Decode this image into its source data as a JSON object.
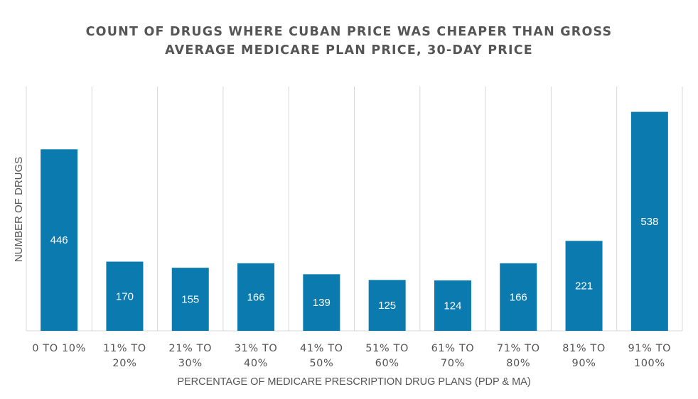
{
  "chart_data": {
    "type": "bar",
    "title_lines": [
      "COUNT OF DRUGS WHERE CUBAN PRICE WAS CHEAPER THAN GROSS",
      "AVERAGE MEDICARE PLAN PRICE, 30-DAY PRICE"
    ],
    "ylabel": "NUMBER OF DRUGS",
    "xlabel": "PERCENTAGE OF MEDICARE PRESCRIPTION DRUG PLANS (PDP & MA)",
    "categories": [
      [
        "0 TO 10%"
      ],
      [
        "11% TO",
        "20%"
      ],
      [
        "21% TO",
        "30%"
      ],
      [
        "31% TO",
        "40%"
      ],
      [
        "41% TO",
        "50%"
      ],
      [
        "51% TO",
        "60%"
      ],
      [
        "61% TO",
        "70%"
      ],
      [
        "71% TO",
        "80%"
      ],
      [
        "81% TO",
        "90%"
      ],
      [
        "91% TO",
        "100%"
      ]
    ],
    "values": [
      446,
      170,
      155,
      166,
      139,
      125,
      124,
      166,
      221,
      538
    ],
    "ylim": [
      0,
      600
    ],
    "grid": "vertical",
    "bar_color": "#0B7BAF",
    "grid_color": "#D9D9D9",
    "text_color": "#555555",
    "label_color": "#FFFFFF"
  }
}
